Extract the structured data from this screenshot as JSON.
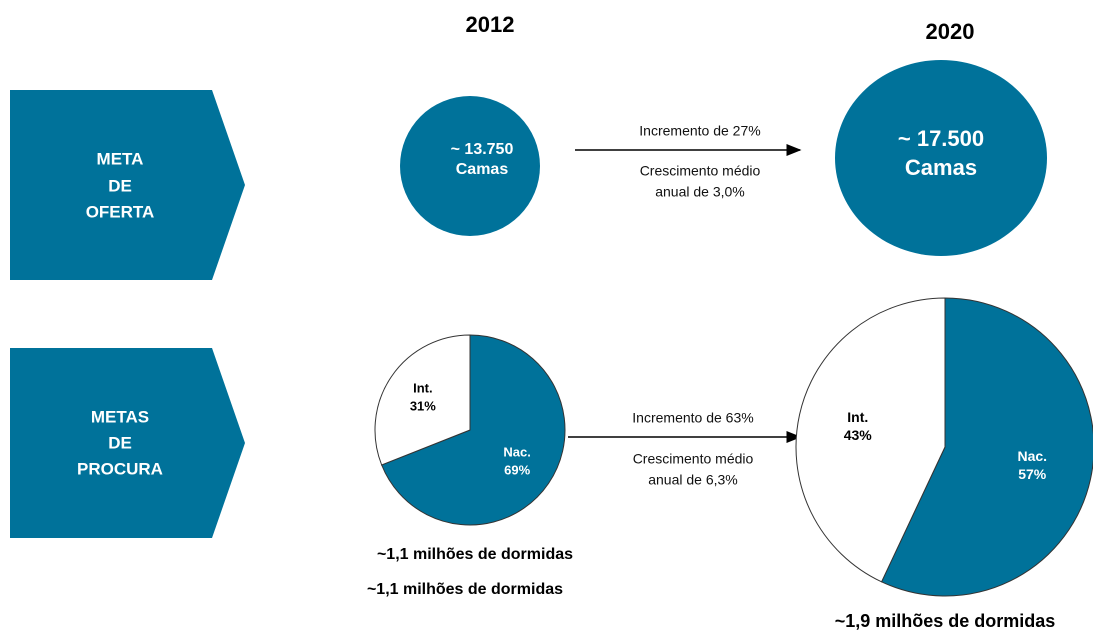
{
  "years": [
    "2012",
    "2020"
  ],
  "rows": [
    {
      "label": [
        "META",
        "DE",
        "OFERTA"
      ]
    },
    {
      "label": [
        "METAS",
        "DE",
        "PROCURA"
      ]
    }
  ],
  "supply": {
    "start": [
      "~ 13.750",
      "Camas"
    ],
    "end": [
      "~ 17.500",
      "Camas"
    ],
    "arrow_top": "Incremento de 27%",
    "arrow_bottom": [
      "Crescimento médio",
      "anual de 3,0%"
    ]
  },
  "demand": {
    "pies": [
      {
        "names": [
          "Nac.",
          "Int."
        ],
        "values": [
          69,
          31
        ],
        "value_labels": [
          "69%",
          "31%"
        ]
      },
      {
        "names": [
          "Nac.",
          "Int."
        ],
        "values": [
          57,
          43
        ],
        "value_labels": [
          "57%",
          "43%"
        ]
      }
    ],
    "arrow_top": "Incremento de 63%",
    "arrow_bottom": [
      "Crescimento médio",
      "anual de 6,3%"
    ],
    "notes": [
      "~1,1 milhões de dormidas",
      "~1,1 milhões de dormidas",
      "~1,9 milhões de dormidas"
    ]
  }
}
